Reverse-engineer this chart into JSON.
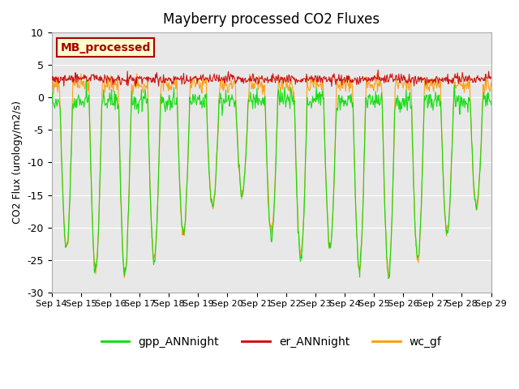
{
  "title": "Mayberry processed CO2 Fluxes",
  "ylabel": "CO2 Flux (urology/m2/s)",
  "xlabel": "",
  "ylim": [
    -30,
    10
  ],
  "xlim": [
    0,
    15
  ],
  "background_color": "#e8e8e8",
  "fig_background": "#ffffff",
  "line_colors": {
    "gpp": "#00dd00",
    "er": "#cc0000",
    "wc": "#ff9900"
  },
  "legend_labels": {
    "gpp": "gpp_ANNnight",
    "er": "er_ANNnight",
    "wc": "wc_gf"
  },
  "inset_label": "MB_processed",
  "inset_facecolor": "#ffffcc",
  "inset_edgecolor": "#aa0000",
  "x_tick_labels": [
    "Sep 14",
    "Sep 15",
    "Sep 16",
    "Sep 17",
    "Sep 18",
    "Sep 19",
    "Sep 20",
    "Sep 21",
    "Sep 22",
    "Sep 23",
    "Sep 24",
    "Sep 25",
    "Sep 26",
    "Sep 27",
    "Sep 28",
    "Sep 29"
  ],
  "yticks": [
    10,
    5,
    0,
    -5,
    -10,
    -15,
    -20,
    -25,
    -30
  ],
  "points_per_day": 48,
  "num_days": 15,
  "gpp_day_min": -21,
  "gpp_night_mean": -0.5,
  "gpp_night_std": 0.8,
  "er_mean": 2.8,
  "er_std": 0.4,
  "wc_day_min": -21,
  "wc_night_mean": 2.0,
  "wc_night_std": 0.6
}
